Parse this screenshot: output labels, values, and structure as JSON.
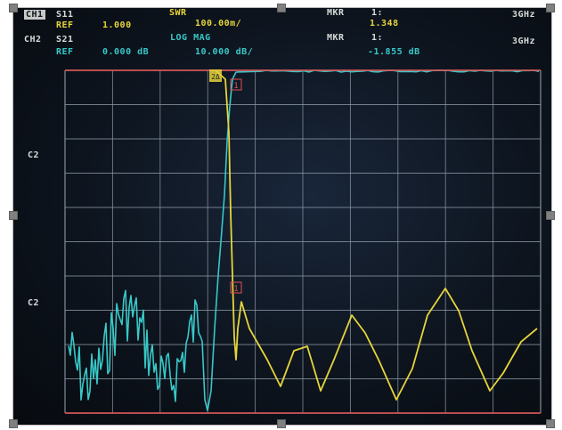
{
  "header": {
    "ch1": {
      "tag": "CH1",
      "param": "S11",
      "ref_label": "REF",
      "ref_value": "1.000",
      "format": "SWR",
      "scale": "100.00m/",
      "marker_label": "MKR",
      "marker_index": "1:",
      "marker_value": "1.348",
      "freq": "3GHz"
    },
    "ch2": {
      "tag": "CH2",
      "param": "S21",
      "ref_label": "REF",
      "ref_value": "0.000 dB",
      "format": "LOG MAG",
      "scale": "10.000 dB/",
      "marker_label": "MKR",
      "marker_index": "1:",
      "marker_value": "-1.855 dB",
      "freq": "3GHz"
    }
  },
  "side_labels": {
    "upper": "C2",
    "lower": "C2"
  },
  "markers": {
    "ch1": "1",
    "ch2": "1",
    "ref_tag": "2Δ"
  },
  "colors": {
    "ch1_trace": "#e6d43a",
    "ch2_trace": "#38c8c8",
    "grid": "#8a98a4",
    "screen_bg": "#0d141e",
    "marker": "#e05050"
  }
}
